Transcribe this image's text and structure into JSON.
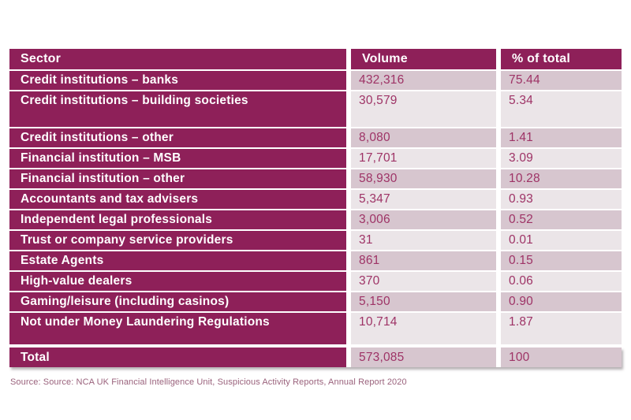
{
  "chart_data": {
    "type": "table",
    "columns": [
      "Sector",
      "Volume",
      "% of total"
    ],
    "rows": [
      {
        "sector": "Credit institutions – banks",
        "volume": "432,316",
        "pct": "75.44"
      },
      {
        "sector": "Credit institutions – building societies",
        "volume": "30,579",
        "pct": "5.34"
      },
      {
        "sector": "Credit institutions – other",
        "volume": "8,080",
        "pct": "1.41"
      },
      {
        "sector": "Financial institution – MSB",
        "volume": "17,701",
        "pct": "3.09"
      },
      {
        "sector": "Financial institution – other",
        "volume": "58,930",
        "pct": "10.28"
      },
      {
        "sector": "Accountants and tax advisers",
        "volume": "5,347",
        "pct": "0.93"
      },
      {
        "sector": "Independent legal professionals",
        "volume": "3,006",
        "pct": "0.52"
      },
      {
        "sector": "Trust or company service providers",
        "volume": "31",
        "pct": "0.01"
      },
      {
        "sector": "Estate Agents",
        "volume": "861",
        "pct": "0.15"
      },
      {
        "sector": "High-value dealers",
        "volume": "370",
        "pct": "0.06"
      },
      {
        "sector": "Gaming/leisure (including casinos)",
        "volume": "5,150",
        "pct": "0.90"
      },
      {
        "sector": "Not under Money Laundering Regulations",
        "volume": "10,714",
        "pct": "1.87"
      }
    ],
    "total": {
      "sector": "Total",
      "volume": "573,085",
      "pct": "100"
    }
  },
  "colors": {
    "header_bg": "#8e2059",
    "row_dark_bg": "#d7c6cf",
    "row_light_bg": "#ebe5e8",
    "value_text": "#9e3366",
    "source_text": "#9a627c"
  },
  "source_note": "Source: Source: NCA UK Financial Intelligence Unit, Suspicious Activity Reports, Annual Report 2020"
}
